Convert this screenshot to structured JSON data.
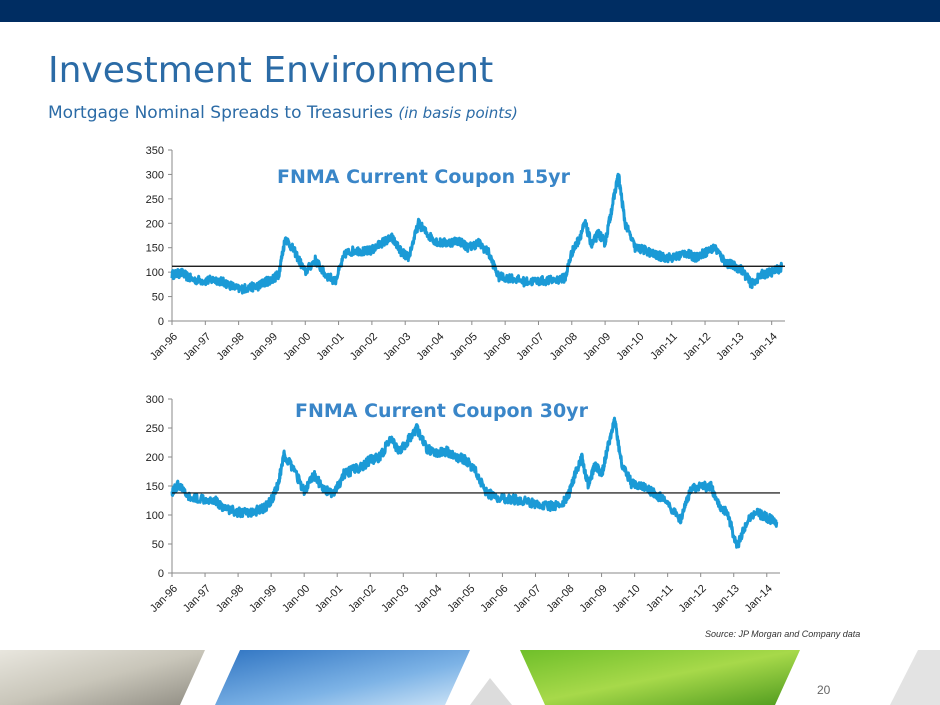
{
  "slide": {
    "title": "Investment Environment",
    "subtitle": "Mortgage Nominal Spreads to Treasuries",
    "subtitle_note": "(in basis points)",
    "source": "Source: JP Morgan and Company data",
    "page_number": "20"
  },
  "colors": {
    "top_bar": "#002D62",
    "title": "#2B6BA6",
    "series": "#1B9AD6",
    "average_line": "#000000",
    "chart_title": "#3A86C8"
  },
  "chart_data": [
    {
      "type": "line",
      "title": "FNMA Current Coupon 15yr",
      "x_ticks": [
        "Jan-96",
        "Jan-97",
        "Jan-98",
        "Jan-99",
        "Jan-00",
        "Jan-01",
        "Jan-02",
        "Jan-03",
        "Jan-04",
        "Jan-05",
        "Jan-06",
        "Jan-07",
        "Jan-08",
        "Jan-09",
        "Jan-10",
        "Jan-11",
        "Jan-12",
        "Jan-13",
        "Jan-14"
      ],
      "y_ticks": [
        0,
        50,
        100,
        150,
        200,
        250,
        300,
        350
      ],
      "ylim": [
        0,
        350
      ],
      "xlim": [
        1996.0,
        2014.4
      ],
      "reference_line": 112,
      "series": [
        {
          "x": [
            1996.0,
            1996.3,
            1996.6,
            1997.0,
            1997.3,
            1997.6,
            1998.0,
            1998.3,
            1998.6,
            1998.8,
            1999.0,
            1999.2,
            1999.4,
            1999.7,
            2000.0,
            2000.3,
            2000.6,
            2000.9,
            2001.2,
            2001.5,
            2001.8,
            2002.0,
            2002.3,
            2002.6,
            2002.9,
            2003.1,
            2003.4,
            2003.7,
            2004.0,
            2004.3,
            2004.6,
            2004.9,
            2005.2,
            2005.5,
            2005.8,
            2006.2,
            2006.6,
            2007.0,
            2007.4,
            2007.8,
            2008.0,
            2008.2,
            2008.4,
            2008.6,
            2008.8,
            2009.0,
            2009.2,
            2009.4,
            2009.6,
            2009.9,
            2010.2,
            2010.5,
            2010.8,
            2011.1,
            2011.4,
            2011.7,
            2012.0,
            2012.3,
            2012.6,
            2012.8,
            2013.1,
            2013.4,
            2013.7,
            2014.0,
            2014.3
          ],
          "y": [
            95,
            98,
            85,
            82,
            85,
            78,
            65,
            68,
            72,
            80,
            85,
            95,
            170,
            140,
            100,
            125,
            95,
            82,
            138,
            145,
            142,
            145,
            160,
            170,
            140,
            130,
            200,
            175,
            160,
            160,
            165,
            150,
            160,
            140,
            90,
            88,
            80,
            82,
            83,
            88,
            140,
            165,
            200,
            155,
            180,
            160,
            230,
            300,
            200,
            150,
            145,
            135,
            130,
            130,
            140,
            130,
            140,
            150,
            120,
            115,
            105,
            75,
            95,
            100,
            110
          ],
          "noise": 9
        }
      ]
    },
    {
      "type": "line",
      "title": "FNMA Current Coupon 30yr",
      "x_ticks": [
        "Jan-96",
        "Jan-97",
        "Jan-98",
        "Jan-99",
        "Jan-00",
        "Jan-01",
        "Jan-02",
        "Jan-03",
        "Jan-04",
        "Jan-05",
        "Jan-06",
        "Jan-07",
        "Jan-08",
        "Jan-09",
        "Jan-10",
        "Jan-11",
        "Jan-12",
        "Jan-13",
        "Jan-14"
      ],
      "y_ticks": [
        0,
        50,
        100,
        150,
        200,
        250,
        300
      ],
      "ylim": [
        0,
        300
      ],
      "xlim": [
        1996.0,
        2014.4
      ],
      "reference_line": 138,
      "series": [
        {
          "x": [
            1996.0,
            1996.2,
            1996.5,
            1997.0,
            1997.3,
            1997.6,
            1998.0,
            1998.3,
            1998.6,
            1998.8,
            1999.0,
            1999.2,
            1999.4,
            1999.8,
            2000.0,
            2000.3,
            2000.6,
            2000.9,
            2001.2,
            2001.5,
            2001.8,
            2002.0,
            2002.3,
            2002.6,
            2002.9,
            2003.1,
            2003.4,
            2003.7,
            2004.0,
            2004.3,
            2004.6,
            2004.9,
            2005.2,
            2005.5,
            2005.8,
            2006.2,
            2006.6,
            2007.0,
            2007.4,
            2007.8,
            2008.0,
            2008.2,
            2008.4,
            2008.6,
            2008.8,
            2009.0,
            2009.2,
            2009.4,
            2009.6,
            2009.9,
            2010.2,
            2010.5,
            2010.8,
            2011.1,
            2011.4,
            2011.7,
            2012.0,
            2012.3,
            2012.6,
            2012.8,
            2013.1,
            2013.4,
            2013.7,
            2014.0,
            2014.3
          ],
          "y": [
            140,
            152,
            130,
            128,
            125,
            112,
            105,
            103,
            108,
            112,
            125,
            150,
            205,
            165,
            140,
            168,
            145,
            135,
            170,
            178,
            185,
            195,
            200,
            230,
            210,
            225,
            250,
            215,
            205,
            210,
            200,
            195,
            175,
            140,
            130,
            128,
            125,
            120,
            115,
            118,
            135,
            170,
            200,
            150,
            185,
            170,
            220,
            265,
            190,
            155,
            150,
            140,
            130,
            110,
            90,
            145,
            148,
            150,
            115,
            105,
            45,
            90,
            105,
            95,
            88
          ],
          "noise": 8
        }
      ]
    }
  ]
}
